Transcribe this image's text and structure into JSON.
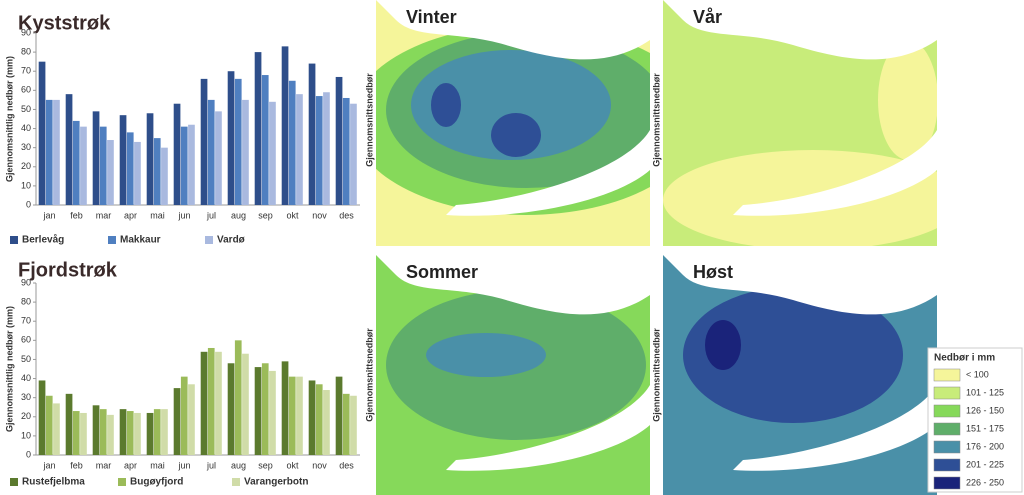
{
  "chart_data": [
    {
      "type": "bar",
      "title": "Kyststrøk",
      "y_label": "Gjennomsnittlig nedbør (mm)",
      "categories": [
        "jan",
        "feb",
        "mar",
        "apr",
        "mai",
        "jun",
        "jul",
        "aug",
        "sep",
        "okt",
        "nov",
        "des"
      ],
      "series": [
        {
          "name": "Berlevåg",
          "color": "#2e4e8a",
          "values": [
            75,
            58,
            49,
            47,
            48,
            53,
            66,
            70,
            80,
            83,
            74,
            67
          ]
        },
        {
          "name": "Makkaur",
          "color": "#4f7fc0",
          "values": [
            55,
            44,
            41,
            38,
            35,
            41,
            55,
            66,
            68,
            65,
            57,
            56
          ]
        },
        {
          "name": "Vardø",
          "color": "#a9b9df",
          "values": [
            55,
            41,
            34,
            33,
            30,
            42,
            49,
            55,
            54,
            58,
            59,
            53
          ]
        }
      ],
      "ylim": [
        0,
        90
      ],
      "yticks": [
        0,
        10,
        20,
        30,
        40,
        50,
        60,
        70,
        80,
        90
      ],
      "grid": false,
      "legend": "bottom"
    },
    {
      "type": "bar",
      "title": "Fjordstrøk",
      "y_label": "Gjennomsnittlig nedbør (mm)",
      "categories": [
        "jan",
        "feb",
        "mar",
        "apr",
        "mai",
        "jun",
        "jul",
        "aug",
        "sep",
        "okt",
        "nov",
        "des"
      ],
      "series": [
        {
          "name": "Rustefjelbma",
          "color": "#5b7a2e",
          "values": [
            39,
            32,
            26,
            24,
            22,
            35,
            54,
            48,
            46,
            49,
            39,
            41
          ]
        },
        {
          "name": "Bugøyfjord",
          "color": "#9bbb59",
          "values": [
            31,
            23,
            24,
            23,
            24,
            41,
            56,
            60,
            48,
            41,
            37,
            32
          ]
        },
        {
          "name": "Varangerbotn",
          "color": "#d0dca8",
          "values": [
            27,
            22,
            21,
            22,
            24,
            37,
            54,
            53,
            44,
            41,
            34,
            31
          ]
        }
      ],
      "ylim": [
        0,
        90
      ],
      "yticks": [
        0,
        10,
        20,
        30,
        40,
        50,
        60,
        70,
        80,
        90
      ],
      "grid": false,
      "legend": "bottom"
    }
  ],
  "maps": {
    "panels": [
      {
        "title": "Vinter",
        "side_label": "Gjennomsnittsnedbør"
      },
      {
        "title": "Vår",
        "side_label": "Gjennomsnittsnedbør"
      },
      {
        "title": "Sommer",
        "side_label": "Gjennomsnittsnedbør"
      },
      {
        "title": "Høst",
        "side_label": "Gjennomsnittsnedbør"
      }
    ],
    "legend": {
      "title": "Nedbør i mm",
      "classes": [
        "< 100",
        "101 - 125",
        "126 - 150",
        "151 - 175",
        "176 - 200",
        "201 - 225",
        "226 - 250"
      ],
      "colors": [
        "#f5f59a",
        "#c8ec7a",
        "#86d95a",
        "#5fae6a",
        "#4a90a8",
        "#2e4f96",
        "#1a237a"
      ]
    }
  }
}
